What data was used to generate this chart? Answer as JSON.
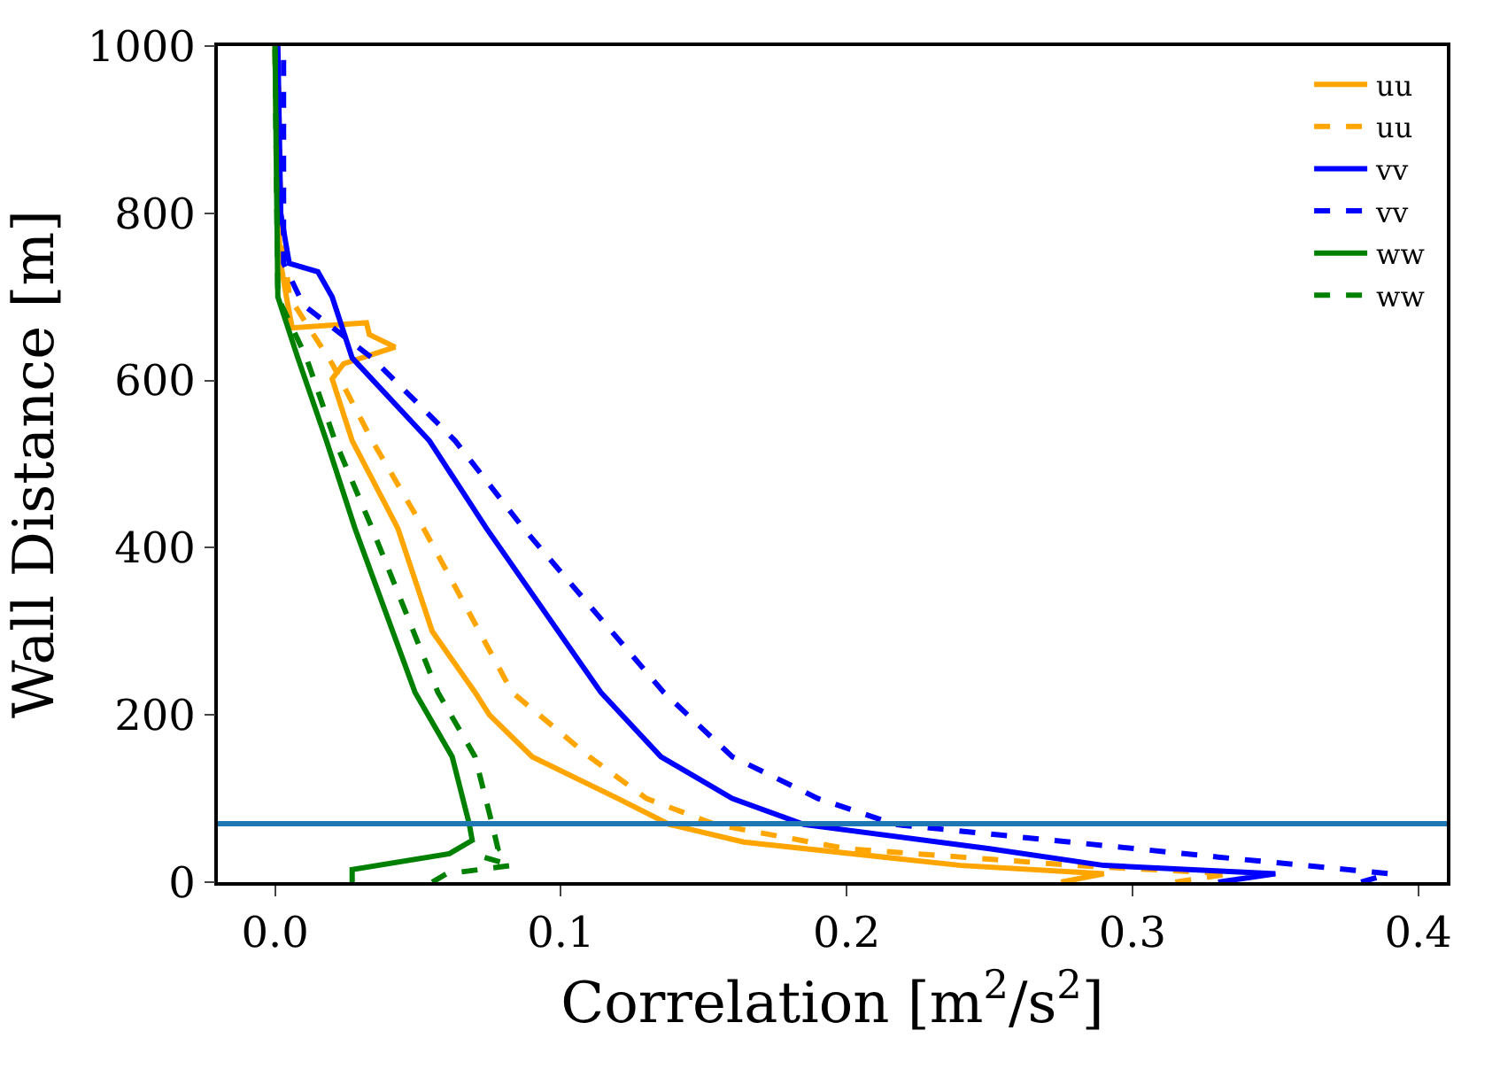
{
  "chart_data": {
    "type": "line",
    "xlabel": "Correlation [m$^{2}$/s$^{2}$]",
    "ylabel": "Wall Distance [m]",
    "xlim": [
      -0.02,
      0.41
    ],
    "xticks": [
      {
        "value": 0,
        "label": "0.0"
      },
      0.1,
      0.2,
      0.3,
      0.4
    ],
    "ylim": [
      0,
      1000
    ],
    "yticks": [
      0,
      200,
      400,
      600,
      800,
      1000
    ],
    "legend": "top right",
    "marker": "none",
    "series": [
      {
        "name": "uu",
        "color": "#ffa500",
        "line_style": "solid",
        "x": [
          0.275,
          0.29,
          0.24,
          0.164,
          0.138,
          0.12,
          0.09,
          0.075,
          0.07,
          0.055,
          0.043,
          0.027,
          0.02,
          0.024,
          0.042,
          0.033,
          0.032,
          0.006,
          0.004,
          0.002,
          0.001,
          0.0
        ],
        "values": [
          0,
          10,
          20,
          48,
          69,
          100,
          150,
          200,
          227,
          300,
          423,
          528,
          602,
          620,
          640,
          655,
          669,
          663,
          700,
          740,
          800,
          1000
        ]
      },
      {
        "name": "uu",
        "color": "#ffa500",
        "line_style": "dashed",
        "x": [
          0.315,
          0.334,
          0.28,
          0.2,
          0.154,
          0.13,
          0.11,
          0.083,
          0.052,
          0.034,
          0.02,
          0.005,
          0.002,
          0.001
        ],
        "values": [
          0,
          10,
          20,
          40,
          69,
          100,
          150,
          227,
          423,
          528,
          620,
          700,
          800,
          1000
        ]
      },
      {
        "name": "vv",
        "color": "#0000ff",
        "line_style": "solid",
        "x": [
          0.33,
          0.35,
          0.29,
          0.25,
          0.185,
          0.16,
          0.135,
          0.114,
          0.074,
          0.054,
          0.027,
          0.02,
          0.015,
          0.005,
          0.002,
          0.001
        ],
        "values": [
          0,
          10,
          20,
          40,
          69,
          100,
          150,
          227,
          423,
          528,
          627,
          700,
          730,
          740,
          800,
          1000
        ]
      },
      {
        "name": "vv",
        "color": "#0000ff",
        "line_style": "dashed",
        "x": [
          0.38,
          0.39,
          0.33,
          0.217,
          0.19,
          0.16,
          0.136,
          0.087,
          0.063,
          0.034,
          0.01,
          0.003,
          0.003
        ],
        "values": [
          0,
          10,
          30,
          69,
          100,
          150,
          227,
          423,
          528,
          627,
          690,
          740,
          1000
        ]
      },
      {
        "name": "ww",
        "color": "#008000",
        "line_style": "solid",
        "x": [
          0.027,
          0.027,
          0.061,
          0.069,
          0.068,
          0.062,
          0.049,
          0.028,
          0.018,
          0.008,
          0.001,
          0.0
        ],
        "values": [
          0,
          15,
          34,
          50,
          69,
          150,
          227,
          423,
          528,
          627,
          700,
          1000
        ]
      },
      {
        "name": "ww",
        "color": "#008000",
        "line_style": "dashed",
        "x": [
          0.055,
          0.06,
          0.083,
          0.073,
          0.078,
          0.076,
          0.07,
          0.057,
          0.034,
          0.021,
          0.011,
          0.001,
          0.0
        ],
        "values": [
          0,
          10,
          20,
          30,
          40,
          69,
          150,
          227,
          423,
          528,
          627,
          700,
          1000
        ]
      }
    ],
    "ref_lines": [
      {
        "axis": "y",
        "value": 70,
        "color": "#1f77b4",
        "line_style": "solid"
      }
    ]
  }
}
